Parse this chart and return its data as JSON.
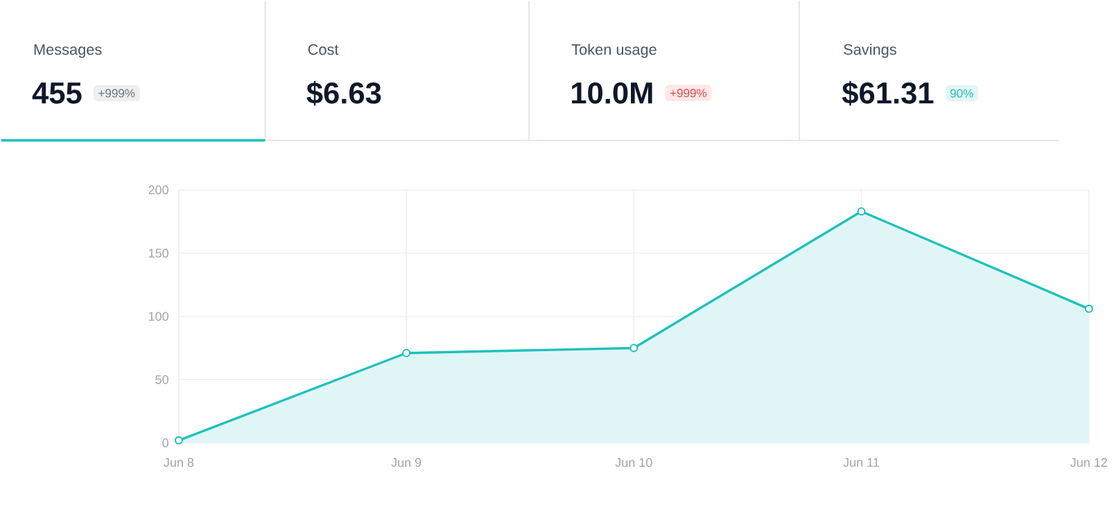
{
  "chart_data": [
    {
      "type": "other",
      "annotations": [
        "Messages",
        "455",
        "+999%",
        "Cost",
        "$6.63",
        "Token usage",
        "10.0M",
        "+999%",
        "Savings",
        "$61.31",
        "90%"
      ]
    },
    {
      "type": "area",
      "categories": [
        "Jun 8",
        "Jun 9",
        "Jun 10",
        "Jun 11",
        "Jun 12"
      ],
      "series": [
        {
          "color": "#1fc1bd",
          "values": [
            2,
            71,
            75,
            183,
            106
          ]
        }
      ],
      "ylim": [
        0,
        200
      ],
      "yticks": [
        0,
        50,
        100,
        150,
        200
      ],
      "grid": true,
      "marker": "circle"
    }
  ]
}
